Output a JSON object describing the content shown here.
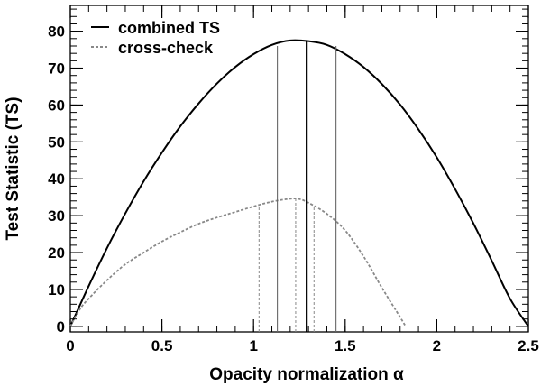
{
  "chart_data": {
    "type": "line",
    "xlabel": "Opacity normalization α",
    "ylabel": "Test Statistic (TS)",
    "xlim": [
      0,
      2.5
    ],
    "ylim": [
      -1.5,
      87
    ],
    "x_ticks": [
      0,
      0.5,
      1,
      1.5,
      2,
      2.5
    ],
    "x_tick_labels": [
      "0",
      "0.5",
      "1",
      "1.5",
      "2",
      "2.5"
    ],
    "y_ticks": [
      0,
      10,
      20,
      30,
      40,
      50,
      60,
      70,
      80
    ],
    "y_tick_labels": [
      "0",
      "10",
      "20",
      "30",
      "40",
      "50",
      "60",
      "70",
      "80"
    ],
    "grid": false,
    "legend_position": "top-left",
    "series": [
      {
        "name": "combined TS",
        "style": "solid",
        "color": "#000000",
        "x": [
          0,
          0.1,
          0.2,
          0.3,
          0.4,
          0.5,
          0.6,
          0.7,
          0.8,
          0.9,
          1.0,
          1.1,
          1.2,
          1.3,
          1.4,
          1.5,
          1.6,
          1.7,
          1.8,
          1.9,
          2.0,
          2.1,
          2.2,
          2.3,
          2.4,
          2.5
        ],
        "y": [
          0,
          10.9,
          21.2,
          30.6,
          39.3,
          47.1,
          54.2,
          60.4,
          65.8,
          70.3,
          73.8,
          76.3,
          77.5,
          77.3,
          76.3,
          73.8,
          70.3,
          65.7,
          60.1,
          53.4,
          45.8,
          37.2,
          27.9,
          17.8,
          7.5,
          0
        ]
      },
      {
        "name": "cross-check",
        "style": "dashed",
        "color": "#888888",
        "x": [
          0,
          0.05,
          0.1,
          0.2,
          0.3,
          0.4,
          0.5,
          0.6,
          0.7,
          0.8,
          0.9,
          1.0,
          1.1,
          1.2,
          1.25,
          1.3,
          1.4,
          1.5,
          1.6,
          1.7,
          1.8,
          1.83
        ],
        "y": [
          0,
          4.5,
          7.5,
          12.5,
          16.8,
          20.0,
          23.0,
          25.5,
          27.8,
          29.5,
          31.0,
          32.5,
          33.8,
          34.6,
          34.5,
          33.5,
          30.5,
          26.0,
          19.0,
          10.5,
          2.5,
          0
        ]
      }
    ],
    "vertical_lines": [
      {
        "x": 1.13,
        "y": 76.0,
        "series": "combined TS",
        "role": "lower bound",
        "style": "solid-thin"
      },
      {
        "x": 1.29,
        "y": 77.3,
        "series": "combined TS",
        "role": "best fit",
        "style": "solid-thick"
      },
      {
        "x": 1.45,
        "y": 76.0,
        "series": "combined TS",
        "role": "upper bound",
        "style": "solid-thin"
      },
      {
        "x": 1.03,
        "y": 33.0,
        "series": "cross-check",
        "role": "lower bound",
        "style": "dashed"
      },
      {
        "x": 1.23,
        "y": 34.6,
        "series": "cross-check",
        "role": "best fit",
        "style": "dashed"
      },
      {
        "x": 1.33,
        "y": 32.5,
        "series": "cross-check",
        "role": "upper bound",
        "style": "dashed"
      }
    ],
    "legend": [
      {
        "label": "combined TS",
        "style": "solid"
      },
      {
        "label": "cross-check",
        "style": "dashed"
      }
    ]
  }
}
